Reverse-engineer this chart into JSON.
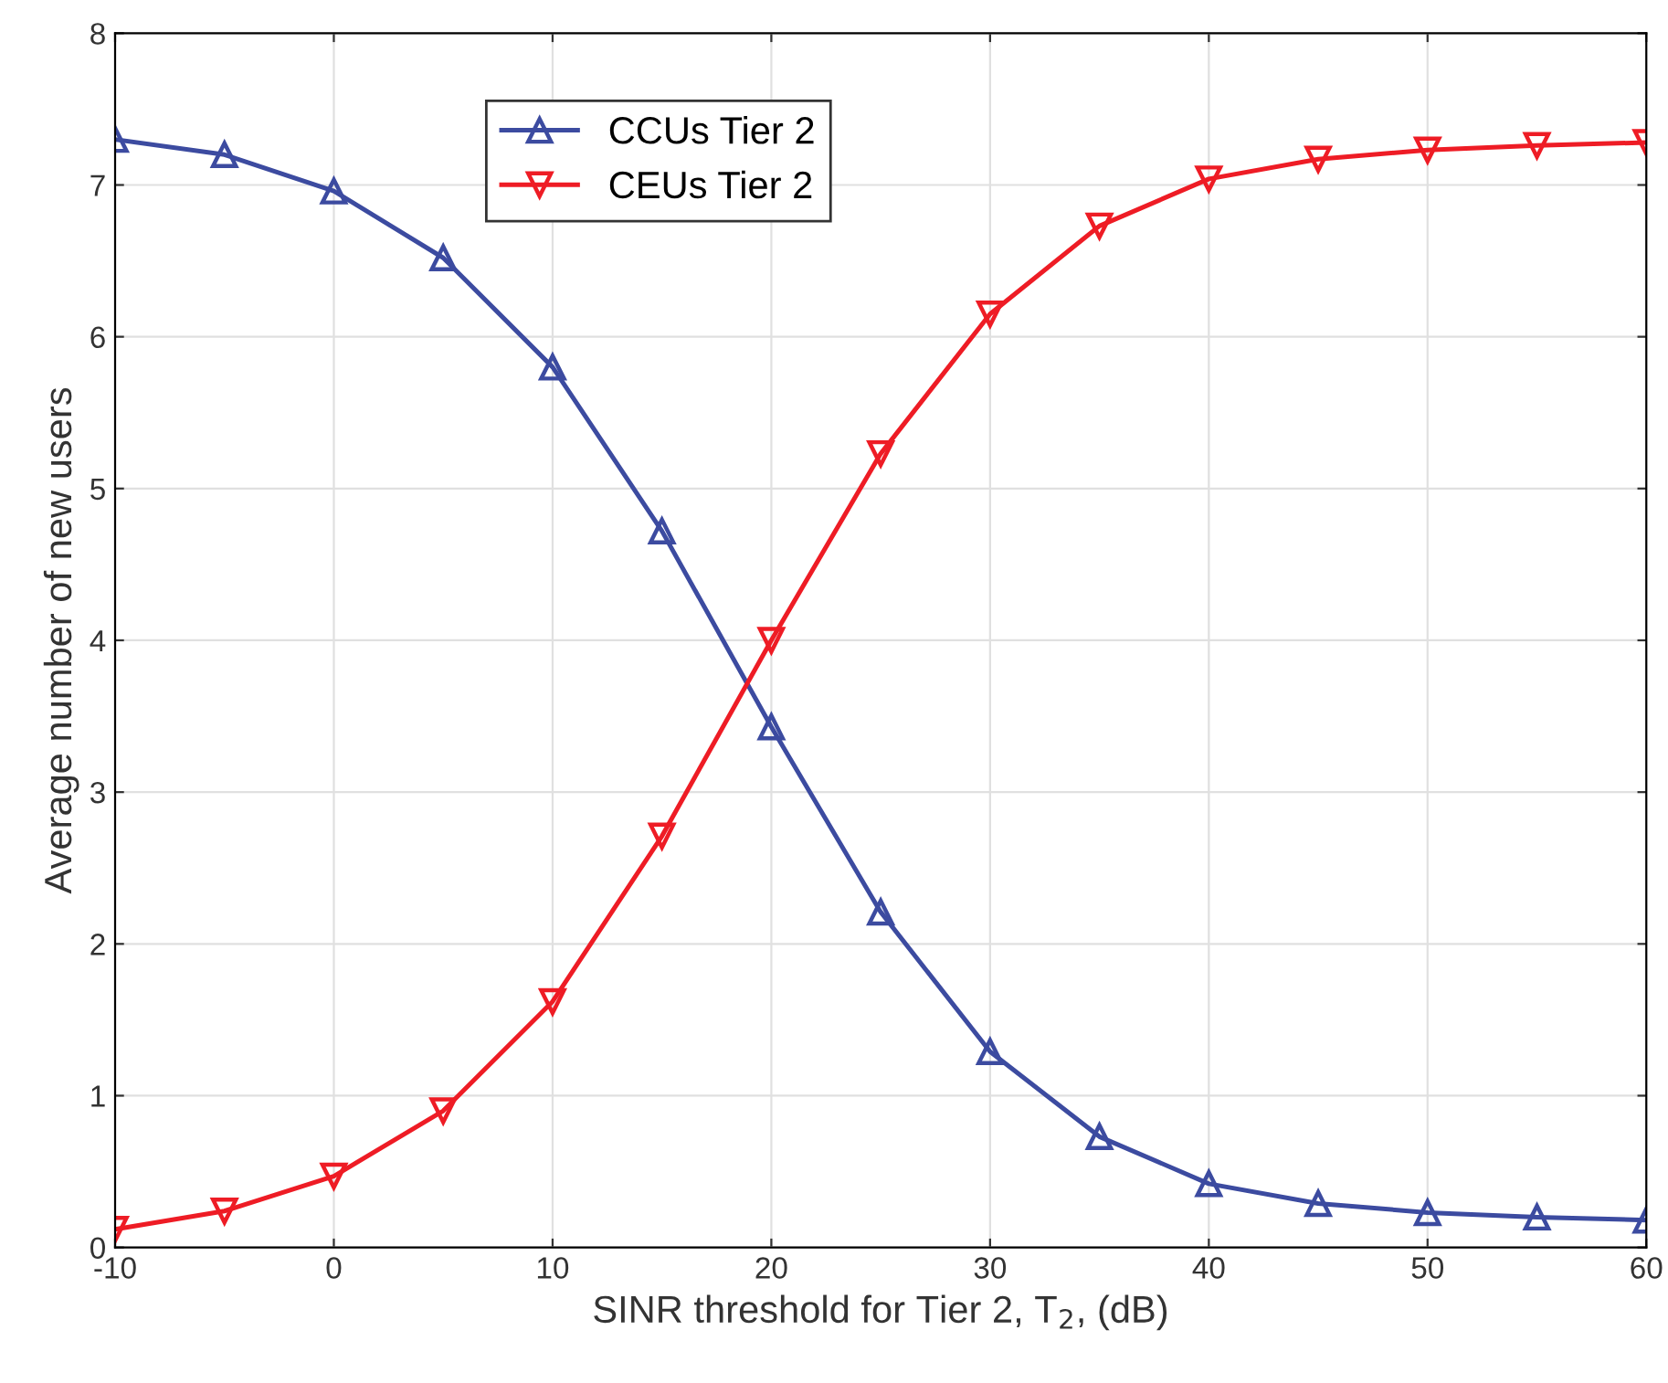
{
  "chart_data": {
    "type": "line",
    "xlabel": "SINR threshold for Tier 2, T$_{2}$, (dB)",
    "ylabel": "Average number of new users",
    "x": [
      -10,
      -5,
      0,
      5,
      10,
      15,
      20,
      25,
      30,
      35,
      40,
      45,
      50,
      55,
      60
    ],
    "series": [
      {
        "name": "CCUs Tier 2",
        "color": "#3c4ba0",
        "values": [
          7.3,
          7.2,
          6.96,
          6.52,
          5.8,
          4.72,
          3.43,
          2.21,
          1.29,
          0.73,
          0.42,
          0.29,
          0.23,
          0.2,
          0.18
        ]
      },
      {
        "name": "CEUs Tier 2",
        "color": "#ee1c25",
        "values": [
          0.12,
          0.24,
          0.47,
          0.9,
          1.62,
          2.71,
          4.0,
          5.23,
          6.15,
          6.73,
          7.04,
          7.17,
          7.23,
          7.26,
          7.28
        ]
      }
    ],
    "xlim": [
      -10,
      60
    ],
    "xticks": [
      -10,
      0,
      10,
      20,
      30,
      40,
      50,
      60
    ],
    "ylim": [
      0,
      8
    ],
    "yticks": [
      0,
      1,
      2,
      3,
      4,
      5,
      6,
      7,
      8
    ],
    "grid": true,
    "legend": "top left",
    "marker": "triangle",
    "line_style": "solid"
  }
}
